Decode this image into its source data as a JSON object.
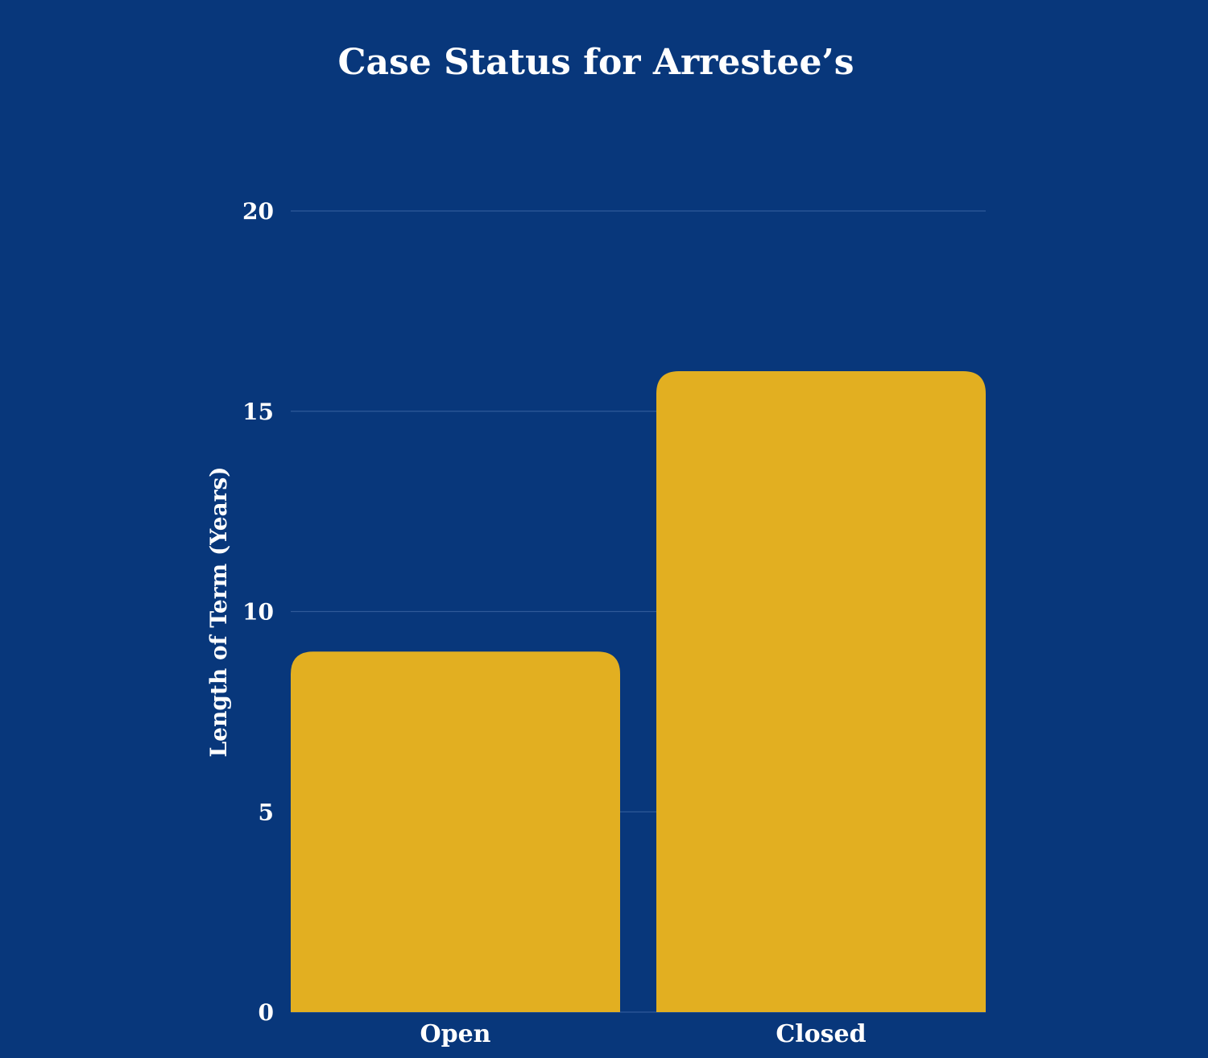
{
  "colors": {
    "background": "#08377b",
    "bar": "#e2af21",
    "gridline": "#2f5a99",
    "text": "#ffffff"
  },
  "chart_data": {
    "type": "bar",
    "title": "Case Status for Arrestee’s",
    "xlabel": "",
    "ylabel": "Length of Term (Years)",
    "categories": [
      "Open",
      "Closed"
    ],
    "values": [
      9,
      16
    ],
    "ylim": [
      0,
      20
    ],
    "yticks": [
      0,
      5,
      10,
      15,
      20
    ],
    "ytick_labels": [
      "0",
      "5",
      "10",
      "15",
      "20"
    ],
    "grid": true,
    "legend": "none"
  }
}
